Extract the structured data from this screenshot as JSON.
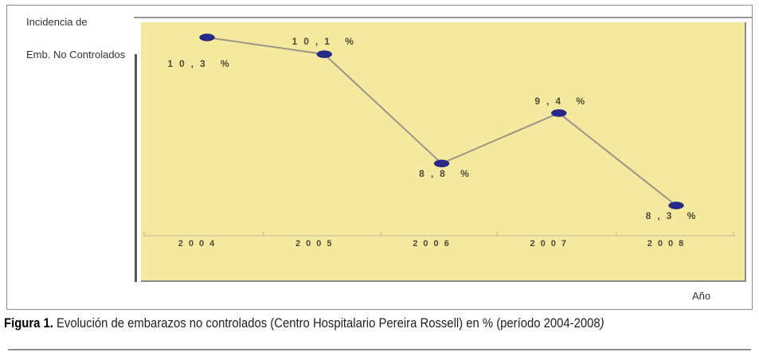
{
  "figure": {
    "y_axis_title_line1": "Incidencia de",
    "y_axis_title_line2": "Emb. No Controlados",
    "x_axis_title": "Año",
    "caption_label": "Figura 1.",
    "caption_text": " Evolución de embarazos no controlados (Centro Hospitalario Pereira Rossell) en % (período 2004-2008",
    "caption_suffix_italic": ")"
  },
  "chart_data": {
    "type": "line",
    "categories": [
      "2004",
      "2005",
      "2006",
      "2007",
      "2008"
    ],
    "values": [
      10.3,
      10.1,
      8.8,
      9.4,
      8.3
    ],
    "point_labels": [
      "10,3 %",
      "10,1 %",
      "8,8 %",
      "9,4 %",
      "8,3 %"
    ],
    "title": "",
    "xlabel": "Año",
    "ylabel": "Incidencia de Emb. No Controlados",
    "ylim": [
      8.0,
      10.55
    ],
    "grid": false,
    "legend": "none",
    "colors": {
      "plot_background": "#F4E99E",
      "line": "#9C9486",
      "marker": "#28288A",
      "label_text": "#4C4C35",
      "x_axis_line": "#DCD3A2",
      "tick": "#CFC591"
    }
  }
}
